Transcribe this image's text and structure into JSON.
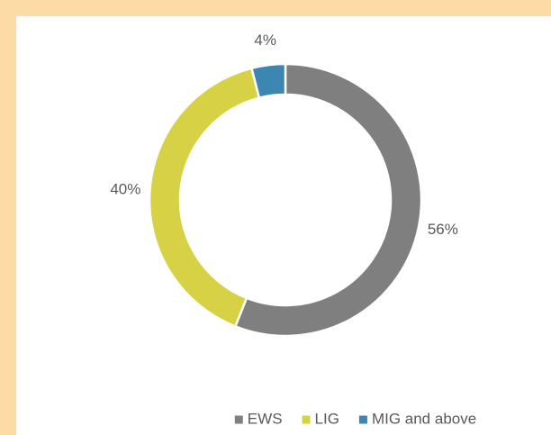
{
  "chart_data": {
    "type": "donut",
    "categories": [
      "EWS",
      "LIG",
      "MIG and above"
    ],
    "values": [
      56,
      40,
      4
    ],
    "value_labels": [
      "56%",
      "40%",
      "4%"
    ],
    "colors": [
      "#7f7f7f",
      "#d7d245",
      "#3b87b1"
    ],
    "legend": "bottom"
  }
}
